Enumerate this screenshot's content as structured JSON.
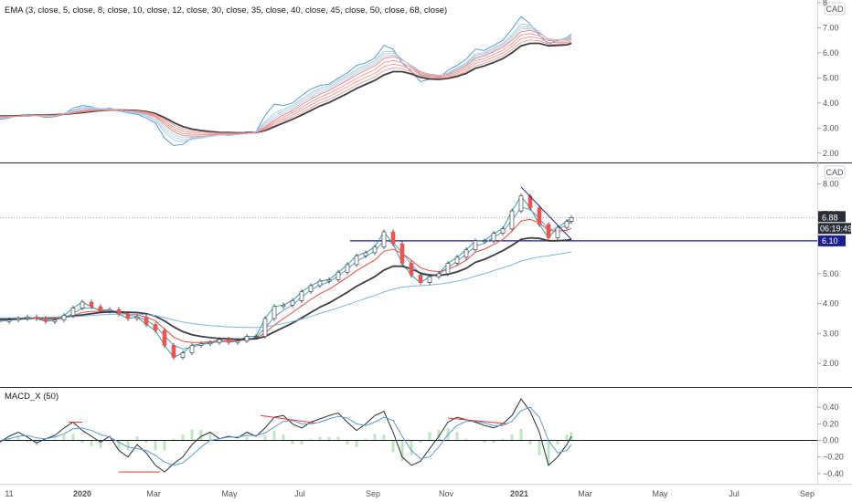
{
  "chart_data": [
    {
      "type": "line",
      "panel": "ema",
      "legend": "EMA (3, close, 5, close, 8, close, 10, close, 12, close, 30, close, 35, close, 40, close, 45, close, 50, close, 68, close)",
      "currency": "CAD",
      "ylim": [
        1.7,
        8.0
      ],
      "y_ticks": [
        2.0,
        3.0,
        4.0,
        5.0,
        6.0,
        7.0,
        8.0
      ],
      "y_tick_labels": [
        "2.00",
        "3.00",
        "4.00",
        "5.00",
        "6.00",
        "7.00",
        "8"
      ],
      "grid": false,
      "x": [
        0,
        10,
        20,
        30,
        40,
        50,
        60,
        70,
        80,
        90,
        100,
        110,
        120,
        130,
        140,
        150,
        160,
        170,
        180,
        190,
        200,
        210,
        220,
        230,
        240,
        250,
        260,
        270,
        280,
        290,
        300,
        310,
        320,
        330,
        340,
        350,
        360,
        370,
        380,
        390,
        400,
        410,
        420,
        430,
        440,
        450,
        460,
        470,
        480,
        490,
        500,
        510,
        520,
        530,
        540,
        550,
        560,
        570,
        580,
        590,
        600,
        610,
        620,
        625
      ],
      "series": [
        {
          "name": "EMA 3",
          "color": "#5b9bd5",
          "values": [
            3.35,
            3.4,
            3.5,
            3.55,
            3.5,
            3.42,
            3.45,
            3.55,
            3.8,
            3.9,
            3.85,
            3.75,
            3.8,
            3.7,
            3.6,
            3.55,
            3.4,
            3.2,
            2.6,
            2.3,
            2.35,
            2.6,
            2.6,
            2.7,
            2.75,
            2.7,
            2.75,
            2.85,
            2.85,
            3.5,
            3.95,
            3.9,
            4.0,
            4.3,
            4.55,
            4.7,
            4.75,
            5.0,
            5.2,
            5.5,
            5.6,
            5.8,
            6.3,
            6.15,
            5.6,
            5.25,
            4.85,
            4.95,
            5.0,
            5.3,
            5.5,
            5.75,
            6.15,
            6.1,
            6.3,
            6.5,
            6.95,
            7.45,
            7.15,
            6.7,
            6.35,
            6.5,
            6.6,
            6.75
          ]
        },
        {
          "name": "EMA 12",
          "color": "#aacde8",
          "values": [
            3.38,
            3.42,
            3.48,
            3.52,
            3.5,
            3.46,
            3.48,
            3.58,
            3.72,
            3.82,
            3.82,
            3.78,
            3.78,
            3.72,
            3.65,
            3.58,
            3.48,
            3.28,
            2.85,
            2.52,
            2.45,
            2.55,
            2.6,
            2.66,
            2.72,
            2.72,
            2.74,
            2.8,
            2.86,
            3.25,
            3.6,
            3.75,
            3.9,
            4.15,
            4.4,
            4.58,
            4.7,
            4.9,
            5.1,
            5.35,
            5.5,
            5.7,
            6.05,
            6.05,
            5.75,
            5.45,
            5.1,
            5.05,
            5.05,
            5.2,
            5.4,
            5.6,
            5.95,
            6.02,
            6.2,
            6.38,
            6.72,
            7.15,
            7.1,
            6.85,
            6.5,
            6.52,
            6.58,
            6.68
          ]
        },
        {
          "name": "EMA 30",
          "color": "#f28b82",
          "values": [
            3.42,
            3.44,
            3.47,
            3.5,
            3.5,
            3.49,
            3.5,
            3.55,
            3.63,
            3.7,
            3.74,
            3.74,
            3.74,
            3.72,
            3.68,
            3.64,
            3.58,
            3.45,
            3.15,
            2.85,
            2.7,
            2.68,
            2.68,
            2.7,
            2.73,
            2.74,
            2.75,
            2.78,
            2.82,
            3.05,
            3.32,
            3.52,
            3.7,
            3.92,
            4.15,
            4.35,
            4.5,
            4.7,
            4.9,
            5.12,
            5.3,
            5.48,
            5.78,
            5.85,
            5.72,
            5.5,
            5.25,
            5.15,
            5.1,
            5.15,
            5.3,
            5.48,
            5.78,
            5.88,
            6.05,
            6.22,
            6.5,
            6.85,
            6.9,
            6.78,
            6.55,
            6.52,
            6.52,
            6.58
          ]
        },
        {
          "name": "EMA 68",
          "color": "#3c3f46",
          "values": [
            3.48,
            3.48,
            3.49,
            3.5,
            3.52,
            3.52,
            3.53,
            3.55,
            3.58,
            3.62,
            3.66,
            3.7,
            3.72,
            3.72,
            3.71,
            3.7,
            3.66,
            3.58,
            3.42,
            3.22,
            3.06,
            2.96,
            2.9,
            2.86,
            2.83,
            2.82,
            2.81,
            2.81,
            2.82,
            2.9,
            3.05,
            3.2,
            3.35,
            3.52,
            3.7,
            3.88,
            4.02,
            4.2,
            4.38,
            4.58,
            4.74,
            4.9,
            5.12,
            5.25,
            5.25,
            5.16,
            5.02,
            4.96,
            4.94,
            4.98,
            5.06,
            5.18,
            5.38,
            5.48,
            5.62,
            5.77,
            6.0,
            6.28,
            6.38,
            6.38,
            6.28,
            6.3,
            6.32,
            6.38
          ]
        }
      ]
    },
    {
      "type": "line",
      "panel": "price",
      "currency": "CAD",
      "ylim": [
        1.3,
        8.6
      ],
      "y_ticks": [
        2.0,
        3.0,
        4.0,
        5.0,
        6.0,
        7.0,
        8.0
      ],
      "y_tick_labels": [
        "2.00",
        "3.00",
        "4.00",
        "5.00",
        "6.00",
        "7.00",
        "8.00"
      ],
      "grid": false,
      "x": [
        0,
        10,
        20,
        30,
        40,
        50,
        60,
        70,
        80,
        90,
        100,
        110,
        120,
        130,
        140,
        150,
        160,
        170,
        180,
        190,
        200,
        210,
        220,
        230,
        240,
        250,
        260,
        270,
        280,
        290,
        300,
        310,
        320,
        330,
        340,
        350,
        360,
        370,
        380,
        390,
        400,
        410,
        420,
        430,
        440,
        450,
        460,
        470,
        480,
        490,
        500,
        510,
        520,
        530,
        540,
        550,
        560,
        570,
        580,
        590,
        600,
        610,
        620,
        625
      ],
      "series": [
        {
          "name": "Close",
          "color": "#26a69a",
          "values": [
            3.4,
            3.45,
            3.5,
            3.55,
            3.5,
            3.4,
            3.45,
            3.6,
            3.85,
            4.05,
            3.9,
            3.75,
            3.8,
            3.65,
            3.5,
            3.55,
            3.3,
            3.1,
            2.6,
            2.2,
            2.35,
            2.6,
            2.65,
            2.7,
            2.8,
            2.7,
            2.75,
            2.9,
            2.9,
            3.5,
            3.9,
            3.95,
            4.1,
            4.4,
            4.6,
            4.75,
            4.8,
            5.05,
            5.3,
            5.6,
            5.7,
            5.9,
            6.4,
            6.0,
            5.35,
            4.95,
            4.7,
            4.9,
            5.0,
            5.35,
            5.55,
            5.8,
            6.1,
            6.1,
            6.35,
            6.5,
            7.1,
            7.6,
            7.2,
            6.65,
            6.2,
            6.55,
            6.75,
            6.88
          ]
        },
        {
          "name": "MA short",
          "color": "#5b9bd5",
          "values": [
            3.42,
            3.44,
            3.47,
            3.5,
            3.5,
            3.46,
            3.46,
            3.52,
            3.68,
            3.84,
            3.86,
            3.8,
            3.78,
            3.72,
            3.62,
            3.56,
            3.44,
            3.26,
            2.92,
            2.6,
            2.48,
            2.55,
            2.62,
            2.67,
            2.73,
            2.73,
            2.74,
            2.8,
            2.86,
            3.18,
            3.55,
            3.78,
            3.95,
            4.22,
            4.45,
            4.62,
            4.72,
            4.92,
            5.15,
            5.42,
            5.58,
            5.75,
            6.1,
            6.05,
            5.7,
            5.32,
            4.98,
            4.92,
            4.98,
            5.2,
            5.42,
            5.65,
            5.92,
            6.02,
            6.22,
            6.4,
            6.78,
            7.22,
            7.15,
            6.85,
            6.48,
            6.5,
            6.62,
            6.75
          ]
        },
        {
          "name": "MA mid",
          "color": "#e84c3d",
          "values": [
            3.45,
            3.46,
            3.48,
            3.5,
            3.5,
            3.48,
            3.48,
            3.52,
            3.6,
            3.7,
            3.74,
            3.74,
            3.74,
            3.71,
            3.66,
            3.62,
            3.55,
            3.42,
            3.15,
            2.88,
            2.74,
            2.7,
            2.7,
            2.72,
            2.75,
            2.76,
            2.77,
            2.8,
            2.84,
            3.02,
            3.28,
            3.5,
            3.7,
            3.92,
            4.14,
            4.33,
            4.48,
            4.68,
            4.88,
            5.1,
            5.28,
            5.46,
            5.75,
            5.82,
            5.68,
            5.45,
            5.2,
            5.1,
            5.07,
            5.14,
            5.28,
            5.45,
            5.72,
            5.82,
            5.98,
            6.14,
            6.42,
            6.76,
            6.82,
            6.7,
            6.45,
            6.42,
            6.45,
            6.52
          ]
        },
        {
          "name": "MA long",
          "color": "#3c3f46",
          "values": [
            3.48,
            3.48,
            3.49,
            3.5,
            3.52,
            3.52,
            3.53,
            3.55,
            3.58,
            3.62,
            3.66,
            3.7,
            3.72,
            3.72,
            3.71,
            3.7,
            3.66,
            3.58,
            3.42,
            3.22,
            3.06,
            2.96,
            2.9,
            2.86,
            2.83,
            2.82,
            2.81,
            2.81,
            2.82,
            2.9,
            3.05,
            3.2,
            3.35,
            3.52,
            3.7,
            3.88,
            4.02,
            4.2,
            4.38,
            4.58,
            4.74,
            4.9,
            5.12,
            5.25,
            5.25,
            5.16,
            5.02,
            4.96,
            4.94,
            4.98,
            5.06,
            5.18,
            5.38,
            5.48,
            5.62,
            5.77,
            5.95,
            6.15,
            6.2,
            6.18,
            6.1,
            6.1,
            6.12,
            6.15
          ]
        },
        {
          "name": "MA very long",
          "color": "#7fb6de",
          "values": [
            3.52,
            3.52,
            3.52,
            3.53,
            3.53,
            3.53,
            3.54,
            3.55,
            3.56,
            3.58,
            3.6,
            3.62,
            3.64,
            3.65,
            3.65,
            3.65,
            3.63,
            3.6,
            3.53,
            3.45,
            3.38,
            3.33,
            3.29,
            3.26,
            3.24,
            3.22,
            3.21,
            3.2,
            3.2,
            3.22,
            3.27,
            3.33,
            3.4,
            3.48,
            3.57,
            3.67,
            3.76,
            3.86,
            3.96,
            4.07,
            4.17,
            4.27,
            4.39,
            4.48,
            4.55,
            4.58,
            4.6,
            4.62,
            4.65,
            4.69,
            4.75,
            4.82,
            4.92,
            5.0,
            5.1,
            5.2,
            5.3,
            5.42,
            5.5,
            5.56,
            5.6,
            5.65,
            5.7,
            5.73
          ]
        }
      ],
      "horizontal_line": {
        "value": 6.1,
        "from_x": 383,
        "color": "#1e1f8f"
      },
      "trend_line": {
        "x": [
          570,
          625
        ],
        "values": [
          7.9,
          6.15
        ],
        "color": "#1e1f8f"
      },
      "last_price": {
        "value": "6.88",
        "countdown": "06:19:49"
      },
      "level_tag": "6.10"
    },
    {
      "type": "line",
      "panel": "macd",
      "legend": "MACD_X (50)",
      "ylim": [
        -0.5,
        0.6
      ],
      "y_ticks": [
        -0.4,
        -0.2,
        0.0,
        0.2,
        0.4
      ],
      "y_tick_labels": [
        "−0.40",
        "−0.20",
        "0.00",
        "0.20",
        "0.40"
      ],
      "grid": false,
      "x": [
        0,
        10,
        20,
        30,
        40,
        50,
        60,
        70,
        80,
        90,
        100,
        110,
        120,
        130,
        140,
        150,
        160,
        170,
        180,
        190,
        200,
        210,
        220,
        230,
        240,
        250,
        260,
        270,
        280,
        290,
        300,
        310,
        320,
        330,
        340,
        350,
        360,
        370,
        380,
        390,
        400,
        410,
        420,
        430,
        440,
        450,
        460,
        470,
        480,
        490,
        500,
        510,
        520,
        530,
        540,
        550,
        560,
        570,
        580,
        590,
        600,
        610,
        620,
        625
      ],
      "series": [
        {
          "name": "MACD",
          "color": "#2a2e39",
          "values": [
            -0.02,
            0.05,
            0.1,
            0.04,
            -0.03,
            0.02,
            0.06,
            0.15,
            0.22,
            0.12,
            0.05,
            -0.02,
            0.05,
            -0.12,
            -0.2,
            -0.05,
            -0.15,
            -0.3,
            -0.38,
            -0.28,
            -0.2,
            -0.05,
            0.05,
            0.1,
            0.02,
            0.05,
            0.03,
            0.1,
            0.05,
            0.15,
            0.28,
            0.3,
            0.2,
            0.15,
            0.22,
            0.26,
            0.3,
            0.33,
            0.22,
            0.12,
            0.2,
            0.3,
            0.35,
            0.1,
            -0.2,
            -0.3,
            -0.25,
            -0.1,
            0.05,
            0.22,
            0.28,
            0.25,
            0.22,
            0.18,
            0.15,
            0.2,
            0.3,
            0.5,
            0.35,
            0.1,
            -0.3,
            -0.2,
            -0.05,
            0.05
          ]
        },
        {
          "name": "Signal",
          "color": "#5b9bd5",
          "values": [
            0.0,
            0.02,
            0.05,
            0.06,
            0.03,
            0.02,
            0.04,
            0.08,
            0.14,
            0.15,
            0.12,
            0.07,
            0.04,
            -0.02,
            -0.08,
            -0.1,
            -0.12,
            -0.18,
            -0.26,
            -0.3,
            -0.27,
            -0.18,
            -0.08,
            0.0,
            0.02,
            0.04,
            0.04,
            0.06,
            0.06,
            0.09,
            0.16,
            0.23,
            0.24,
            0.2,
            0.2,
            0.22,
            0.26,
            0.29,
            0.27,
            0.2,
            0.18,
            0.22,
            0.28,
            0.24,
            0.05,
            -0.12,
            -0.22,
            -0.2,
            -0.08,
            0.07,
            0.18,
            0.23,
            0.23,
            0.21,
            0.18,
            0.18,
            0.23,
            0.36,
            0.4,
            0.28,
            0.0,
            -0.15,
            -0.12,
            -0.05
          ]
        }
      ],
      "divergence_lines": [
        {
          "x": [
            75,
            90
          ],
          "values": [
            0.22,
            0.22
          ],
          "color": "#e53935"
        },
        {
          "x": [
            130,
            175
          ],
          "values": [
            -0.38,
            -0.38
          ],
          "color": "#e53935"
        },
        {
          "x": [
            285,
            345
          ],
          "values": [
            0.3,
            0.21
          ],
          "color": "#e53935"
        },
        {
          "x": [
            490,
            555
          ],
          "values": [
            0.27,
            0.2
          ],
          "color": "#e53935"
        }
      ]
    }
  ],
  "x_axis": {
    "labels": [
      "11",
      "2020",
      "Mar",
      "May",
      "Jul",
      "Sep",
      "Nov",
      "2021",
      "Mar",
      "May",
      "Jul",
      "Sep"
    ],
    "positions": [
      10,
      90,
      168,
      251,
      328,
      408,
      488,
      568,
      640,
      722,
      803,
      883
    ]
  }
}
